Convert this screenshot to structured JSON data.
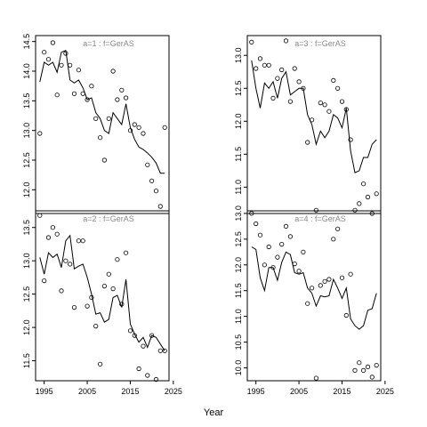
{
  "chart_data": [
    {
      "type": "line",
      "panel_title": "a=1 : f=GerAS",
      "xlim": [
        1993,
        2024
      ],
      "ylim": [
        11.6,
        14.6
      ],
      "yticks": [
        12.0,
        12.5,
        13.0,
        13.5,
        14.0,
        14.5
      ],
      "xticks": [
        1995,
        2005,
        2015,
        2025
      ],
      "show_xticks": false,
      "observed": {
        "x": [
          1994,
          1995,
          1996,
          1997,
          1998,
          1999,
          2000,
          2001,
          2002,
          2003,
          2004,
          2005,
          2006,
          2007,
          2008,
          2009,
          2010,
          2011,
          2012,
          2013,
          2014,
          2015,
          2016,
          2017,
          2018,
          2019,
          2020,
          2021,
          2022,
          2023
        ],
        "y": [
          12.95,
          14.32,
          14.2,
          14.48,
          13.6,
          14.1,
          14.3,
          14.1,
          13.62,
          14.02,
          13.62,
          13.52,
          13.75,
          13.2,
          12.88,
          12.5,
          13.2,
          14.0,
          13.52,
          13.68,
          13.55,
          13.0,
          13.1,
          13.05,
          12.95,
          12.42,
          12.15,
          11.98,
          11.72,
          13.05
        ]
      },
      "fitted": {
        "x": [
          1994,
          1995,
          1996,
          1997,
          1998,
          1999,
          2000,
          2001,
          2002,
          2003,
          2004,
          2005,
          2006,
          2007,
          2008,
          2009,
          2010,
          2011,
          2012,
          2013,
          2014,
          2015,
          2016,
          2017,
          2018,
          2019,
          2020,
          2021,
          2022,
          2023
        ],
        "y": [
          13.82,
          14.15,
          14.1,
          14.15,
          13.98,
          14.32,
          14.35,
          13.85,
          13.8,
          13.85,
          13.72,
          13.52,
          13.55,
          13.3,
          13.2,
          13.0,
          12.95,
          13.3,
          13.2,
          13.1,
          13.45,
          13.05,
          12.85,
          12.72,
          12.68,
          12.62,
          12.55,
          12.45,
          12.28,
          12.28
        ]
      }
    },
    {
      "type": "line",
      "panel_title": "a=3 : f=GerAS",
      "xlim": [
        1993,
        2024
      ],
      "ylim": [
        10.6,
        13.3
      ],
      "yticks": [
        10.5,
        11.0,
        11.5,
        12.0,
        12.5,
        13.0
      ],
      "xticks": [
        1995,
        2005,
        2015,
        2025
      ],
      "show_xticks": false,
      "observed": {
        "x": [
          1994,
          1995,
          1996,
          1997,
          1998,
          1999,
          2000,
          2001,
          2002,
          2003,
          2004,
          2005,
          2006,
          2007,
          2008,
          2009,
          2010,
          2011,
          2012,
          2013,
          2014,
          2015,
          2016,
          2017,
          2018,
          2019,
          2020,
          2021,
          2022,
          2023
        ],
        "y": [
          13.2,
          12.8,
          12.95,
          12.85,
          12.85,
          12.35,
          12.65,
          12.78,
          13.22,
          12.3,
          12.8,
          12.6,
          12.5,
          11.68,
          12.02,
          10.65,
          12.28,
          12.25,
          12.15,
          12.62,
          12.5,
          12.3,
          12.18,
          11.72,
          10.65,
          10.75,
          11.05,
          10.85,
          10.6,
          10.9
        ]
      },
      "fitted": {
        "x": [
          1994,
          1995,
          1996,
          1997,
          1998,
          1999,
          2000,
          2001,
          2002,
          2003,
          2004,
          2005,
          2006,
          2007,
          2008,
          2009,
          2010,
          2011,
          2012,
          2013,
          2014,
          2015,
          2016,
          2017,
          2018,
          2019,
          2020,
          2021,
          2022,
          2023
        ],
        "y": [
          12.92,
          12.5,
          12.2,
          12.58,
          12.5,
          12.6,
          12.35,
          12.65,
          12.75,
          12.4,
          12.45,
          12.5,
          12.5,
          12.1,
          11.95,
          11.65,
          11.85,
          11.75,
          11.85,
          12.1,
          12.05,
          11.9,
          12.2,
          11.55,
          11.22,
          11.25,
          11.45,
          11.45,
          11.65,
          11.72
        ]
      }
    },
    {
      "type": "line",
      "panel_title": "a=2 : f=GerAS",
      "xlim": [
        1993,
        2024
      ],
      "ylim": [
        11.2,
        13.75
      ],
      "yticks": [
        11.5,
        12.0,
        12.5,
        13.0,
        13.5
      ],
      "xticks": [
        1995,
        2005,
        2015,
        2025
      ],
      "show_xticks": true,
      "observed": {
        "x": [
          1994,
          1995,
          1996,
          1997,
          1998,
          1999,
          2000,
          2001,
          2002,
          2003,
          2004,
          2005,
          2006,
          2007,
          2008,
          2009,
          2010,
          2011,
          2012,
          2013,
          2014,
          2015,
          2016,
          2017,
          2018,
          2019,
          2020,
          2021,
          2022,
          2023
        ],
        "y": [
          13.68,
          12.7,
          13.35,
          13.5,
          13.4,
          12.55,
          13.0,
          12.95,
          12.3,
          13.3,
          13.3,
          12.32,
          12.45,
          12.02,
          11.45,
          12.62,
          12.8,
          12.58,
          13.02,
          12.35,
          13.12,
          11.95,
          11.88,
          11.38,
          11.72,
          11.28,
          11.88,
          11.22,
          11.65,
          11.65
        ]
      },
      "fitted": {
        "x": [
          1994,
          1995,
          1996,
          1997,
          1998,
          1999,
          2000,
          2001,
          2002,
          2003,
          2004,
          2005,
          2006,
          2007,
          2008,
          2009,
          2010,
          2011,
          2012,
          2013,
          2014,
          2015,
          2016,
          2017,
          2018,
          2019,
          2020,
          2021,
          2022,
          2023
        ],
        "y": [
          13.05,
          12.8,
          13.12,
          13.05,
          13.1,
          12.9,
          13.3,
          13.38,
          12.88,
          12.92,
          12.95,
          12.75,
          12.5,
          12.2,
          12.22,
          12.08,
          12.12,
          12.45,
          12.48,
          12.3,
          12.72,
          12.05,
          11.9,
          11.78,
          11.85,
          11.7,
          11.88,
          11.85,
          11.75,
          11.65
        ]
      }
    },
    {
      "type": "line",
      "panel_title": "a=4 : f=GerAS",
      "xlim": [
        1993,
        2024
      ],
      "ylim": [
        9.75,
        13.05
      ],
      "yticks": [
        10.0,
        10.5,
        11.0,
        11.5,
        12.0,
        12.5,
        13.0
      ],
      "xticks": [
        1995,
        2005,
        2015,
        2025
      ],
      "show_xticks": true,
      "observed": {
        "x": [
          1994,
          1995,
          1996,
          1997,
          1998,
          1999,
          2000,
          2001,
          2002,
          2003,
          2004,
          2005,
          2006,
          2007,
          2008,
          2009,
          2010,
          2011,
          2012,
          2013,
          2014,
          2015,
          2016,
          2017,
          2018,
          2019,
          2020,
          2021,
          2022,
          2023
        ],
        "y": [
          13.0,
          12.8,
          12.58,
          12.0,
          12.35,
          11.95,
          12.15,
          12.4,
          12.75,
          12.55,
          12.02,
          11.88,
          12.25,
          11.25,
          11.55,
          9.8,
          11.6,
          11.68,
          11.72,
          12.5,
          12.7,
          11.75,
          11.02,
          11.82,
          9.95,
          10.1,
          9.95,
          10.02,
          9.82,
          10.05
        ]
      },
      "fitted": {
        "x": [
          1994,
          1995,
          1996,
          1997,
          1998,
          1999,
          2000,
          2001,
          2002,
          2003,
          2004,
          2005,
          2006,
          2007,
          2008,
          2009,
          2010,
          2011,
          2012,
          2013,
          2014,
          2015,
          2016,
          2017,
          2018,
          2019,
          2020,
          2021,
          2022,
          2023
        ],
        "y": [
          12.35,
          12.3,
          11.75,
          11.5,
          11.95,
          11.95,
          11.7,
          12.05,
          12.25,
          12.2,
          11.85,
          11.82,
          11.85,
          11.55,
          11.45,
          11.2,
          11.4,
          11.38,
          11.4,
          11.72,
          11.55,
          11.35,
          11.55,
          10.95,
          10.82,
          10.75,
          10.82,
          11.12,
          11.15,
          11.45
        ]
      }
    }
  ],
  "xlabel": "Year"
}
